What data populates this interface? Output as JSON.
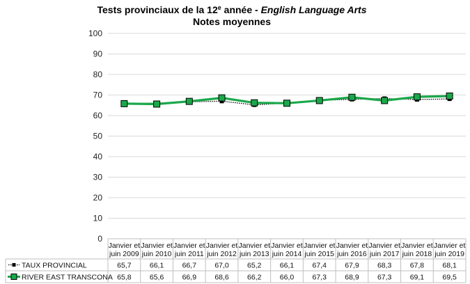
{
  "chart_data": {
    "type": "line",
    "title_main": "Tests provinciaux de la 12",
    "title_sup": "e",
    "title_mid": " année - ",
    "title_italic": "English Language Arts",
    "subtitle": "Notes moyennes",
    "categories": [
      [
        "Janvier et",
        "juin 2009"
      ],
      [
        "Janvier et",
        "juin 2010"
      ],
      [
        "Janvier et",
        "juin 2011"
      ],
      [
        "Janvier et",
        "juin 2012"
      ],
      [
        "Janvier et",
        "juin 2013"
      ],
      [
        "Janvier et",
        "juin 2014"
      ],
      [
        "Janvier et",
        "juin 2015"
      ],
      [
        "Janvier et",
        "juin 2016"
      ],
      [
        "Janvier et",
        "juin 2017"
      ],
      [
        "Janvier et",
        "juin 2018"
      ],
      [
        "Janvier et",
        "juin 2019"
      ]
    ],
    "ylim": [
      0,
      100
    ],
    "yticks": [
      0,
      10,
      20,
      30,
      40,
      50,
      60,
      70,
      80,
      90,
      100
    ],
    "grid": true,
    "legend_placement": "data-table",
    "series": [
      {
        "name": "TAUX PROVINCIAL",
        "color": "#000000",
        "style": "dotted",
        "values": [
          65.7,
          66.1,
          66.7,
          67.0,
          65.2,
          66.1,
          67.4,
          67.9,
          68.3,
          67.8,
          68.1
        ],
        "labels": [
          "65,7",
          "66,1",
          "66,7",
          "67,0",
          "65,2",
          "66,1",
          "67,4",
          "67,9",
          "68,3",
          "67,8",
          "68,1"
        ]
      },
      {
        "name": "RIVER EAST TRANSCONA",
        "color": "#1aa84b",
        "style": "solid",
        "values": [
          65.8,
          65.6,
          66.9,
          68.6,
          66.2,
          66.0,
          67.3,
          68.9,
          67.3,
          69.1,
          69.5
        ],
        "labels": [
          "65,8",
          "65,6",
          "66,9",
          "68,6",
          "66,2",
          "66,0",
          "67,3",
          "68,9",
          "67,3",
          "69,1",
          "69,5"
        ]
      }
    ]
  }
}
